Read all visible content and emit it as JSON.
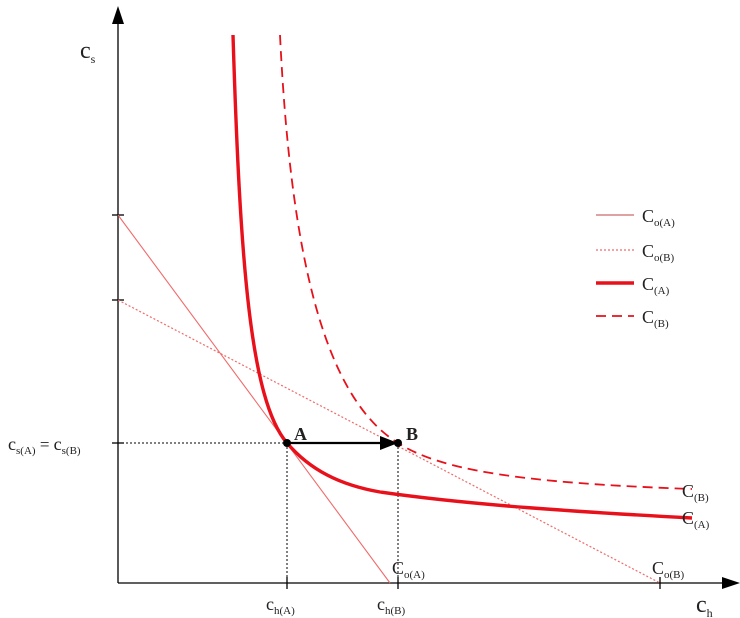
{
  "colors": {
    "axis": "#000000",
    "red": "#e8101a",
    "thin_red": "#f06a6a",
    "guide": "#000000"
  },
  "axes": {
    "y": {
      "main": "c",
      "sub": "s"
    },
    "x": {
      "main": "c",
      "sub": "h"
    }
  },
  "points": {
    "A": {
      "label": "A"
    },
    "B": {
      "label": "B"
    }
  },
  "y_tick_label": {
    "part1": "c",
    "sub1": "s(A)",
    "eq": " = ",
    "part2": "c",
    "sub2": "s(B)"
  },
  "x_ticks": [
    {
      "main": "c",
      "sub": "h(A)"
    },
    {
      "main": "c",
      "sub": "h(B)"
    }
  ],
  "curve_labels": {
    "CB": {
      "main": "C",
      "sub": "(B)"
    },
    "CA": {
      "main": "C",
      "sub": "(A)"
    },
    "CoA": {
      "main": "C",
      "sub": "o(A)"
    },
    "CoB": {
      "main": "C",
      "sub": "o(B)"
    }
  },
  "legend": [
    {
      "main": "C",
      "sub": "o(A)",
      "style": "thin-solid"
    },
    {
      "main": "C",
      "sub": "o(B)",
      "style": "thin-dotted"
    },
    {
      "main": "C",
      "sub": "(A)",
      "style": "thick-solid"
    },
    {
      "main": "C",
      "sub": "(B)",
      "style": "thick-dashed"
    }
  ]
}
